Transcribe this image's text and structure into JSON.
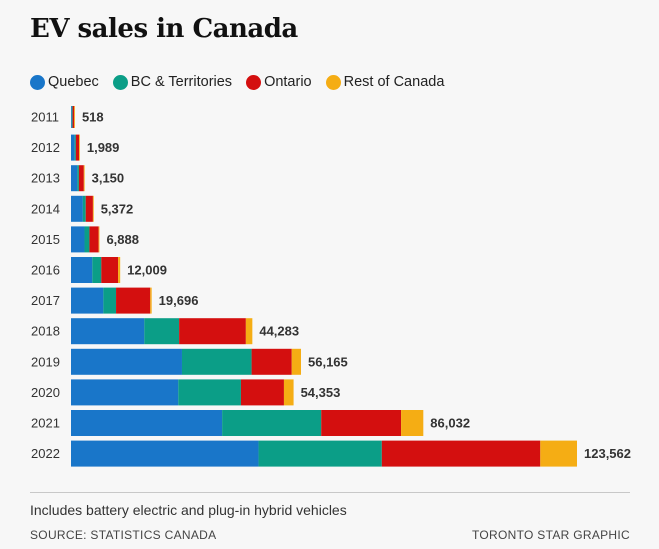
{
  "chart_data": {
    "type": "bar",
    "orientation": "horizontal",
    "stacked": true,
    "title": "EV sales in Canada",
    "legend_position": "top-left",
    "grid": false,
    "categories": [
      "2011",
      "2012",
      "2013",
      "2014",
      "2015",
      "2016",
      "2017",
      "2018",
      "2019",
      "2020",
      "2021",
      "2022"
    ],
    "totals": [
      "518",
      "1,989",
      "3,150",
      "5,372",
      "6,888",
      "12,009",
      "19,696",
      "44,283",
      "56,165",
      "54,353",
      "86,032",
      "123,562"
    ],
    "total_values": [
      518,
      1989,
      3150,
      5372,
      6888,
      12009,
      19696,
      44283,
      56165,
      54353,
      86032,
      123562
    ],
    "series": [
      {
        "name": "Quebec",
        "color": "#1976c9",
        "values": [
          80,
          900,
          1550,
          2900,
          3300,
          5200,
          7900,
          17900,
          27100,
          26200,
          36900,
          45800
        ]
      },
      {
        "name": "BC & Territories",
        "color": "#0b9e87",
        "values": [
          40,
          290,
          380,
          700,
          1200,
          2200,
          3100,
          8500,
          17000,
          15300,
          24200,
          30100
        ]
      },
      {
        "name": "Ontario",
        "color": "#d40f0f",
        "values": [
          380,
          780,
          1200,
          1750,
          2250,
          4100,
          8350,
          16300,
          9800,
          10500,
          19500,
          38700
        ]
      },
      {
        "name": "Rest of Canada",
        "color": "#f5ad14",
        "values": [
          18,
          19,
          20,
          22,
          138,
          509,
          346,
          1583,
          2265,
          2353,
          5432,
          8962
        ]
      }
    ]
  },
  "note": "Includes battery electric and plug-in hybrid vehicles",
  "source": "SOURCE: STATISTICS CANADA",
  "credit": "TORONTO STAR GRAPHIC"
}
